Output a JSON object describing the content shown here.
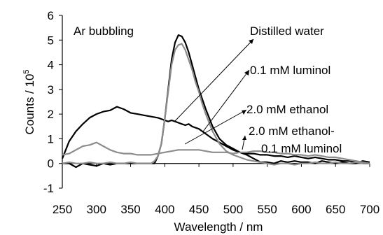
{
  "chart_data": {
    "type": "line",
    "xlabel": "Wavelength / nm",
    "ylabel": "Counts / 10^5",
    "ylabel_base": "Counts / 10",
    "ylabel_exp": "5",
    "xlim": [
      250,
      700
    ],
    "ylim": [
      -1,
      6
    ],
    "xticks": [
      250,
      300,
      350,
      400,
      450,
      500,
      550,
      600,
      650,
      700
    ],
    "yticks": [
      -1,
      0,
      1,
      2,
      3,
      4,
      5,
      6
    ],
    "grid": false,
    "annotations": {
      "condition": "Ar bubbling",
      "labels": [
        "Distilled water",
        "0.1 mM luminol",
        "2.0 mM ethanol",
        "2.0 mM ethanol-",
        "0.1 mM luminol"
      ]
    },
    "series": [
      {
        "color": "#000000",
        "x": [
          250,
          260,
          270,
          280,
          290,
          300,
          310,
          320,
          330,
          340,
          350,
          360,
          370,
          380,
          390,
          395,
          400,
          405,
          410,
          415,
          420,
          425,
          430,
          435,
          440,
          445,
          450,
          460,
          470,
          480,
          490,
          500,
          510,
          520,
          530,
          540,
          550,
          560,
          570,
          580,
          590,
          600,
          610,
          620,
          630,
          640,
          650,
          660,
          670,
          680,
          690,
          700
        ],
        "y": [
          0.2,
          0.9,
          1.3,
          1.6,
          1.85,
          2.0,
          2.1,
          2.15,
          2.3,
          2.2,
          2.05,
          2.0,
          1.95,
          1.9,
          1.85,
          1.8,
          1.75,
          1.7,
          1.75,
          1.7,
          1.65,
          1.6,
          1.55,
          1.6,
          1.5,
          1.45,
          1.4,
          1.2,
          1.0,
          0.85,
          0.7,
          0.55,
          0.45,
          0.4,
          0.4,
          0.35,
          0.35,
          0.3,
          0.3,
          0.25,
          0.3,
          0.25,
          0.2,
          0.25,
          0.2,
          0.15,
          0.15,
          0.1,
          0.1,
          0.05,
          0.0,
          0.0
        ]
      },
      {
        "color": "#000000",
        "x": [
          250,
          260,
          270,
          280,
          290,
          300,
          310,
          320,
          330,
          340,
          350,
          360,
          370,
          380,
          385,
          390,
          395,
          400,
          405,
          410,
          415,
          420,
          425,
          430,
          435,
          440,
          445,
          450,
          455,
          460,
          470,
          480,
          490,
          500,
          510,
          520,
          530,
          540,
          550,
          560,
          570,
          580,
          590,
          600,
          610,
          620,
          630,
          640,
          650,
          660,
          670,
          680,
          690,
          700
        ],
        "y": [
          0.0,
          0.0,
          -0.15,
          0.0,
          -0.05,
          -0.1,
          0.0,
          -0.05,
          0.0,
          0.0,
          0.0,
          0.0,
          0.0,
          0.0,
          0.0,
          0.3,
          0.8,
          1.8,
          3.0,
          4.2,
          4.9,
          5.2,
          5.15,
          4.9,
          4.5,
          4.0,
          3.5,
          3.0,
          2.6,
          2.2,
          1.5,
          1.0,
          0.75,
          0.6,
          0.45,
          0.35,
          0.2,
          0.05,
          0.05,
          0.0,
          0.1,
          0.05,
          0.1,
          0.05,
          0.05,
          0.0,
          0.1,
          0.05,
          0.0,
          0.05,
          0.0,
          0.0,
          0.1,
          0.05
        ]
      },
      {
        "color": "#8c8c8c",
        "x": [
          250,
          260,
          270,
          280,
          290,
          300,
          310,
          320,
          330,
          340,
          350,
          360,
          370,
          380,
          385,
          390,
          395,
          400,
          405,
          410,
          415,
          420,
          425,
          430,
          435,
          440,
          445,
          450,
          455,
          460,
          470,
          480,
          490,
          500,
          510,
          520,
          530,
          540,
          550,
          560,
          570,
          580,
          590,
          600,
          610,
          620,
          630,
          640,
          650,
          660,
          670,
          680,
          690,
          700
        ],
        "y": [
          0.0,
          0.05,
          0.0,
          0.0,
          0.05,
          0.0,
          0.0,
          0.05,
          0.0,
          0.0,
          0.05,
          0.0,
          0.0,
          0.0,
          0.1,
          0.3,
          0.8,
          1.8,
          2.9,
          4.0,
          4.6,
          4.8,
          4.85,
          4.6,
          4.2,
          3.8,
          3.3,
          2.9,
          2.4,
          2.0,
          1.3,
          0.8,
          0.5,
          0.35,
          0.25,
          0.15,
          0.1,
          0.05,
          0.0,
          -0.05,
          0.0,
          0.0,
          -0.05,
          0.0,
          0.0,
          0.05,
          0.0,
          0.0,
          0.05,
          0.0,
          0.0,
          0.05,
          0.0,
          0.0
        ]
      },
      {
        "color": "#8c8c8c",
        "x": [
          250,
          260,
          270,
          280,
          290,
          300,
          310,
          320,
          330,
          340,
          350,
          360,
          370,
          380,
          390,
          400,
          410,
          420,
          430,
          440,
          450,
          460,
          470,
          480,
          490,
          500,
          510,
          520,
          530,
          540,
          550,
          560,
          570,
          580,
          590,
          600,
          610,
          620,
          630,
          640,
          650,
          660,
          670,
          680,
          690,
          700
        ],
        "y": [
          0.35,
          0.4,
          0.55,
          0.7,
          0.75,
          0.85,
          0.7,
          0.55,
          0.45,
          0.4,
          0.4,
          0.35,
          0.35,
          0.35,
          0.4,
          0.45,
          0.5,
          0.55,
          0.55,
          0.55,
          0.55,
          0.5,
          0.45,
          0.45,
          0.45,
          0.4,
          0.45,
          0.45,
          0.5,
          0.5,
          0.45,
          0.45,
          0.4,
          0.4,
          0.35,
          0.35,
          0.3,
          0.35,
          0.3,
          0.25,
          0.25,
          0.2,
          0.15,
          0.1,
          0.05,
          0.0
        ]
      }
    ]
  },
  "colors": {
    "black_line": "#000000",
    "gray_line": "#8c8c8c",
    "axis": "#000000"
  }
}
